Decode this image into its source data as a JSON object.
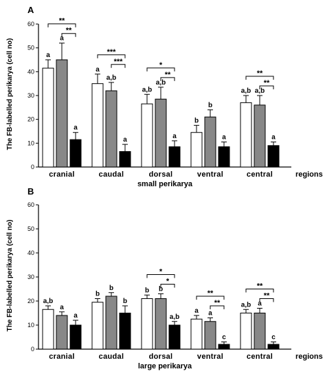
{
  "chart_data": [
    {
      "type": "bar",
      "panel": "A",
      "xlabel": "small perikarya",
      "axis_extra": "regions",
      "ylabel": "The FB-labelled perikarya (cell no)",
      "ylim": [
        0,
        60
      ],
      "yticks": [
        0,
        10,
        20,
        30,
        40,
        50,
        60
      ],
      "categories": [
        "cranial",
        "caudal",
        "dorsal",
        "ventral",
        "central"
      ],
      "series_colors": [
        "#ffffff",
        "#888888",
        "#000000"
      ],
      "series": [
        {
          "values": [
            41.5,
            35,
            26.5,
            14.5,
            27
          ],
          "errors": [
            3.5,
            4,
            4,
            3,
            3
          ],
          "letters": [
            "a",
            "a",
            "a,b",
            "b",
            "a,b"
          ]
        },
        {
          "values": [
            45,
            32,
            28.5,
            21,
            26
          ],
          "errors": [
            7,
            3.5,
            5,
            3,
            4
          ],
          "letters": [
            "a",
            "a,b",
            "a,b",
            "b",
            "a,b"
          ]
        },
        {
          "values": [
            11.5,
            6.5,
            8.5,
            8.5,
            9
          ],
          "errors": [
            3,
            3,
            2.5,
            2,
            1.5
          ],
          "letters": [
            "a",
            "a",
            "a",
            "a",
            "a"
          ]
        }
      ],
      "significance": [
        {
          "category": 0,
          "from": 0,
          "to": 2,
          "label": "**"
        },
        {
          "category": 0,
          "from": 1,
          "to": 2,
          "label": "**"
        },
        {
          "category": 1,
          "from": 0,
          "to": 2,
          "label": "***"
        },
        {
          "category": 1,
          "from": 1,
          "to": 2,
          "label": "***"
        },
        {
          "category": 2,
          "from": 0,
          "to": 2,
          "label": "*"
        },
        {
          "category": 2,
          "from": 1,
          "to": 2,
          "label": "**"
        },
        {
          "category": 4,
          "from": 0,
          "to": 2,
          "label": "**"
        },
        {
          "category": 4,
          "from": 1,
          "to": 2,
          "label": "**"
        }
      ]
    },
    {
      "type": "bar",
      "panel": "B",
      "xlabel": "large perikarya",
      "axis_extra": "regions",
      "ylabel": "The FB-labelled perikarya (cell no)",
      "ylim": [
        0,
        60
      ],
      "yticks": [
        0,
        10,
        20,
        30,
        40,
        50,
        60
      ],
      "categories": [
        "cranial",
        "caudal",
        "dorsal",
        "ventral",
        "central"
      ],
      "series_colors": [
        "#ffffff",
        "#888888",
        "#000000"
      ],
      "series": [
        {
          "values": [
            16.5,
            19.5,
            21,
            12.5,
            15
          ],
          "errors": [
            1.5,
            1.5,
            1.5,
            1.5,
            1.5
          ],
          "letters": [
            "a,b",
            "b",
            "b",
            "a",
            "a,b"
          ]
        },
        {
          "values": [
            14,
            22,
            21,
            11.5,
            15
          ],
          "errors": [
            1.5,
            1.5,
            2,
            1.5,
            2
          ],
          "letters": [
            "a",
            "b",
            "b",
            "a",
            "a"
          ]
        },
        {
          "values": [
            10,
            15,
            10,
            2,
            2
          ],
          "errors": [
            2,
            3,
            1.5,
            1,
            1
          ],
          "letters": [
            "a",
            "b",
            "a,b",
            "c",
            "c"
          ]
        }
      ],
      "significance": [
        {
          "category": 2,
          "from": 0,
          "to": 2,
          "label": "*"
        },
        {
          "category": 2,
          "from": 1,
          "to": 2,
          "label": "*"
        },
        {
          "category": 3,
          "from": 0,
          "to": 2,
          "label": "**"
        },
        {
          "category": 3,
          "from": 1,
          "to": 2,
          "label": "**"
        },
        {
          "category": 4,
          "from": 0,
          "to": 2,
          "label": "**"
        },
        {
          "category": 4,
          "from": 1,
          "to": 2,
          "label": "**"
        }
      ]
    }
  ]
}
